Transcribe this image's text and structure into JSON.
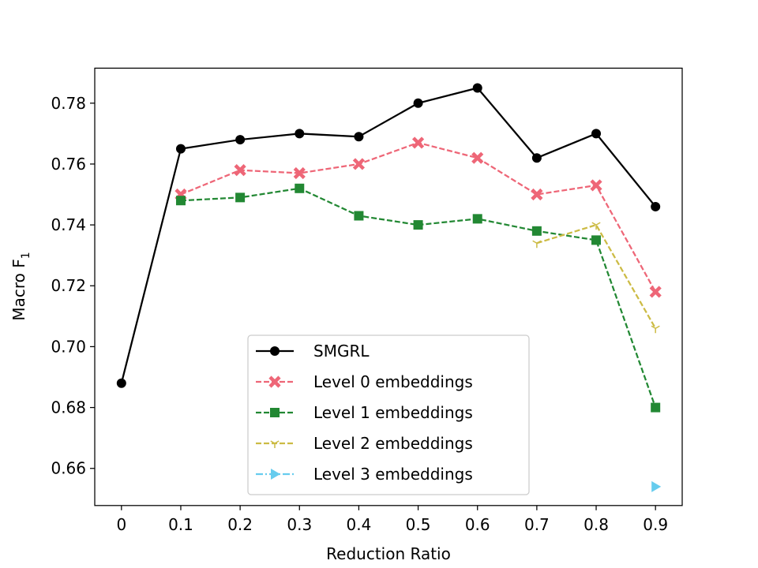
{
  "chart_data": {
    "type": "line",
    "title": "",
    "xlabel": "Reduction Ratio",
    "ylabel": "Macro F",
    "ylabel_subscript": "1",
    "xlim": [
      -0.045,
      0.945
    ],
    "ylim": [
      0.6478,
      0.7915
    ],
    "x_ticks": [
      "0",
      "0.1",
      "0.2",
      "0.3",
      "0.4",
      "0.5",
      "0.6",
      "0.7",
      "0.8",
      "0.9"
    ],
    "y_ticks": [
      "0.66",
      "0.68",
      "0.70",
      "0.72",
      "0.74",
      "0.76",
      "0.78"
    ],
    "grid": false,
    "legend_position": "lower-center",
    "series": [
      {
        "name": "SMGRL",
        "color": "#000000",
        "marker": "circle",
        "dash": "solid",
        "x": [
          0,
          0.1,
          0.2,
          0.3,
          0.4,
          0.5,
          0.6,
          0.7,
          0.8,
          0.9
        ],
        "y": [
          0.688,
          0.765,
          0.768,
          0.77,
          0.769,
          0.78,
          0.785,
          0.762,
          0.77,
          0.746
        ]
      },
      {
        "name": "Level 0 embeddings",
        "color": "#ee6677",
        "marker": "x-filled",
        "dash": "dashed",
        "x": [
          0.1,
          0.2,
          0.3,
          0.4,
          0.5,
          0.6,
          0.7,
          0.8,
          0.9
        ],
        "y": [
          0.75,
          0.758,
          0.757,
          0.76,
          0.767,
          0.762,
          0.75,
          0.753,
          0.718
        ]
      },
      {
        "name": "Level 1 embeddings",
        "color": "#228833",
        "marker": "square",
        "dash": "dashed",
        "x": [
          0.1,
          0.2,
          0.3,
          0.4,
          0.5,
          0.6,
          0.7,
          0.8,
          0.9
        ],
        "y": [
          0.748,
          0.749,
          0.752,
          0.743,
          0.74,
          0.742,
          0.738,
          0.735,
          0.68
        ]
      },
      {
        "name": "Level 2 embeddings",
        "color": "#ccbb44",
        "marker": "tri-down",
        "dash": "dashed",
        "x": [
          0.7,
          0.8,
          0.9
        ],
        "y": [
          0.734,
          0.74,
          0.706
        ]
      },
      {
        "name": "Level 3 embeddings",
        "color": "#66ccee",
        "marker": "triangle-right",
        "dash": "dashdot",
        "x": [
          0.9
        ],
        "y": [
          0.654
        ]
      }
    ]
  }
}
